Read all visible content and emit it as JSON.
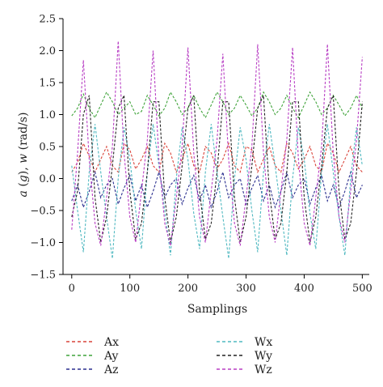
{
  "chart_data": {
    "type": "line",
    "xlabel": "Samplings",
    "ylabel_parts": [
      "a",
      " (",
      "g",
      "), ",
      "w",
      " (rad/s)"
    ],
    "xlim": [
      -15,
      512
    ],
    "ylim": [
      -1.5,
      2.5
    ],
    "xticks": [
      0,
      100,
      200,
      300,
      400,
      500
    ],
    "yticks": [
      -1.5,
      -1.0,
      -0.5,
      0.0,
      0.5,
      1.0,
      1.5,
      2.0,
      2.5
    ],
    "xtick_labels": [
      "0",
      "100",
      "200",
      "300",
      "400",
      "500"
    ],
    "ytick_labels": [
      "−1.5",
      "−1.0",
      "−0.5",
      "0.0",
      "0.5",
      "1.0",
      "1.5",
      "2.0",
      "2.5"
    ],
    "legend_position": "below",
    "series": [
      {
        "name": "Ax",
        "color": "#d9443a",
        "x": [
          0,
          10,
          20,
          30,
          40,
          50,
          60,
          70,
          80,
          90,
          100,
          110,
          120,
          130,
          140,
          150,
          160,
          170,
          180,
          190,
          200,
          210,
          220,
          230,
          240,
          250,
          260,
          270,
          280,
          290,
          300,
          310,
          320,
          330,
          340,
          350,
          360,
          370,
          380,
          390,
          400,
          410,
          420,
          430,
          440,
          450,
          460,
          470,
          480,
          490,
          500
        ],
        "values": [
          0.1,
          0.25,
          0.55,
          0.35,
          0.1,
          0.3,
          0.5,
          0.2,
          0.1,
          0.55,
          0.45,
          0.15,
          0.3,
          0.5,
          0.2,
          0.1,
          0.55,
          0.4,
          0.1,
          0.3,
          0.55,
          0.2,
          0.1,
          0.5,
          0.4,
          0.15,
          0.3,
          0.55,
          0.2,
          0.1,
          0.5,
          0.45,
          0.1,
          0.3,
          0.5,
          0.2,
          0.1,
          0.55,
          0.4,
          0.15,
          0.3,
          0.5,
          0.2,
          0.1,
          0.55,
          0.4,
          0.1,
          0.3,
          0.5,
          0.2,
          0.1
        ]
      },
      {
        "name": "Ay",
        "color": "#3fa33a",
        "x": [
          0,
          10,
          20,
          30,
          40,
          50,
          60,
          70,
          80,
          90,
          100,
          110,
          120,
          130,
          140,
          150,
          160,
          170,
          180,
          190,
          200,
          210,
          220,
          230,
          240,
          250,
          260,
          270,
          280,
          290,
          300,
          310,
          320,
          330,
          340,
          350,
          360,
          370,
          380,
          390,
          400,
          410,
          420,
          430,
          440,
          450,
          460,
          470,
          480,
          490,
          500
        ],
        "values": [
          0.98,
          1.1,
          1.32,
          1.1,
          0.95,
          1.15,
          1.35,
          1.2,
          1.0,
          1.1,
          1.2,
          1.0,
          1.05,
          1.3,
          1.15,
          0.98,
          1.1,
          1.35,
          1.2,
          1.0,
          1.1,
          1.3,
          1.1,
          0.95,
          1.15,
          1.35,
          1.2,
          1.0,
          1.1,
          1.3,
          1.15,
          0.98,
          1.1,
          1.35,
          1.2,
          1.0,
          1.1,
          1.3,
          1.1,
          0.95,
          1.15,
          1.35,
          1.2,
          1.0,
          1.1,
          1.3,
          1.15,
          0.98,
          1.1,
          1.3,
          1.1
        ]
      },
      {
        "name": "Az",
        "color": "#2b2f8f",
        "x": [
          0,
          10,
          20,
          30,
          40,
          50,
          60,
          70,
          80,
          90,
          100,
          110,
          120,
          130,
          140,
          150,
          160,
          170,
          180,
          190,
          200,
          210,
          220,
          230,
          240,
          250,
          260,
          270,
          280,
          290,
          300,
          310,
          320,
          330,
          340,
          350,
          360,
          370,
          380,
          390,
          400,
          410,
          420,
          430,
          440,
          450,
          460,
          470,
          480,
          490,
          500
        ],
        "values": [
          -0.35,
          -0.1,
          -0.45,
          -0.2,
          0.1,
          -0.3,
          -0.1,
          0.0,
          -0.4,
          -0.15,
          0.05,
          -0.35,
          -0.1,
          -0.45,
          -0.2,
          0.1,
          -0.3,
          -0.1,
          0.0,
          -0.4,
          -0.15,
          0.05,
          -0.35,
          -0.1,
          -0.45,
          -0.2,
          0.1,
          -0.3,
          -0.1,
          0.0,
          -0.4,
          -0.15,
          0.05,
          -0.35,
          -0.1,
          -0.45,
          -0.2,
          0.1,
          -0.3,
          -0.1,
          0.0,
          -0.4,
          -0.15,
          0.05,
          -0.35,
          -0.1,
          -0.45,
          -0.2,
          0.1,
          -0.3,
          -0.1
        ]
      },
      {
        "name": "Wx",
        "color": "#4fb8c0",
        "x": [
          0,
          10,
          20,
          30,
          40,
          50,
          60,
          70,
          80,
          90,
          100,
          110,
          120,
          130,
          140,
          150,
          160,
          170,
          180,
          190,
          200,
          210,
          220,
          230,
          240,
          250,
          260,
          270,
          280,
          290,
          300,
          310,
          320,
          330,
          340,
          350,
          360,
          370,
          380,
          390,
          400,
          410,
          420,
          430,
          440,
          450,
          460,
          470,
          480,
          490,
          500
        ],
        "values": [
          0.2,
          -0.5,
          -1.15,
          0.1,
          0.85,
          0.1,
          -0.6,
          -1.25,
          0.0,
          0.8,
          0.3,
          -0.5,
          -1.1,
          0.1,
          0.85,
          0.2,
          -0.5,
          -1.2,
          0.0,
          0.8,
          0.3,
          -0.55,
          -1.1,
          0.1,
          0.85,
          0.1,
          -0.6,
          -1.25,
          0.0,
          0.8,
          0.3,
          -0.5,
          -1.15,
          0.1,
          0.85,
          0.2,
          -0.5,
          -1.2,
          0.0,
          0.8,
          0.3,
          -0.55,
          -1.1,
          0.1,
          0.85,
          0.1,
          -0.6,
          -1.2,
          0.0,
          0.8,
          0.2
        ]
      },
      {
        "name": "Wy",
        "color": "#222222",
        "x": [
          0,
          10,
          20,
          30,
          40,
          50,
          60,
          70,
          80,
          90,
          100,
          110,
          120,
          130,
          140,
          150,
          160,
          170,
          180,
          190,
          200,
          210,
          220,
          230,
          240,
          250,
          260,
          270,
          280,
          290,
          300,
          310,
          320,
          330,
          340,
          350,
          360,
          370,
          380,
          390,
          400,
          410,
          420,
          430,
          440,
          450,
          460,
          470,
          480,
          490,
          500
        ],
        "values": [
          -0.6,
          -0.2,
          1.0,
          1.3,
          -0.3,
          -1.0,
          -0.6,
          0.2,
          1.1,
          1.3,
          -0.2,
          -0.95,
          -0.7,
          0.1,
          1.2,
          1.2,
          -0.3,
          -1.0,
          -0.6,
          0.2,
          1.1,
          1.3,
          -0.2,
          -0.95,
          -0.7,
          0.1,
          1.2,
          1.2,
          -0.3,
          -1.0,
          -0.6,
          0.2,
          1.1,
          1.3,
          -0.2,
          -0.95,
          -0.7,
          0.1,
          1.2,
          1.2,
          -0.3,
          -1.0,
          -0.6,
          0.2,
          1.1,
          1.3,
          -0.2,
          -0.95,
          -0.7,
          0.1,
          1.2
        ]
      },
      {
        "name": "Wz",
        "color": "#b83fc4",
        "x": [
          0,
          10,
          20,
          30,
          40,
          50,
          60,
          70,
          80,
          90,
          100,
          110,
          120,
          130,
          140,
          150,
          160,
          170,
          180,
          190,
          200,
          210,
          220,
          230,
          240,
          250,
          260,
          270,
          280,
          290,
          300,
          310,
          320,
          330,
          340,
          350,
          360,
          370,
          380,
          390,
          400,
          410,
          420,
          430,
          440,
          450,
          460,
          470,
          480,
          490,
          500
        ],
        "values": [
          -0.8,
          0.4,
          1.85,
          0.3,
          -0.7,
          -1.05,
          -0.3,
          0.5,
          2.15,
          0.4,
          -0.6,
          -1.0,
          -0.2,
          0.6,
          2.0,
          0.3,
          -0.7,
          -1.05,
          -0.3,
          0.5,
          2.05,
          0.4,
          -0.6,
          -1.0,
          -0.2,
          0.6,
          1.95,
          0.3,
          -0.7,
          -1.05,
          -0.3,
          0.5,
          2.1,
          0.4,
          -0.6,
          -1.0,
          -0.2,
          0.6,
          2.05,
          0.3,
          -0.7,
          -1.05,
          -0.3,
          0.5,
          2.1,
          0.4,
          -0.6,
          -1.0,
          -0.2,
          0.6,
          1.9
        ]
      }
    ]
  }
}
